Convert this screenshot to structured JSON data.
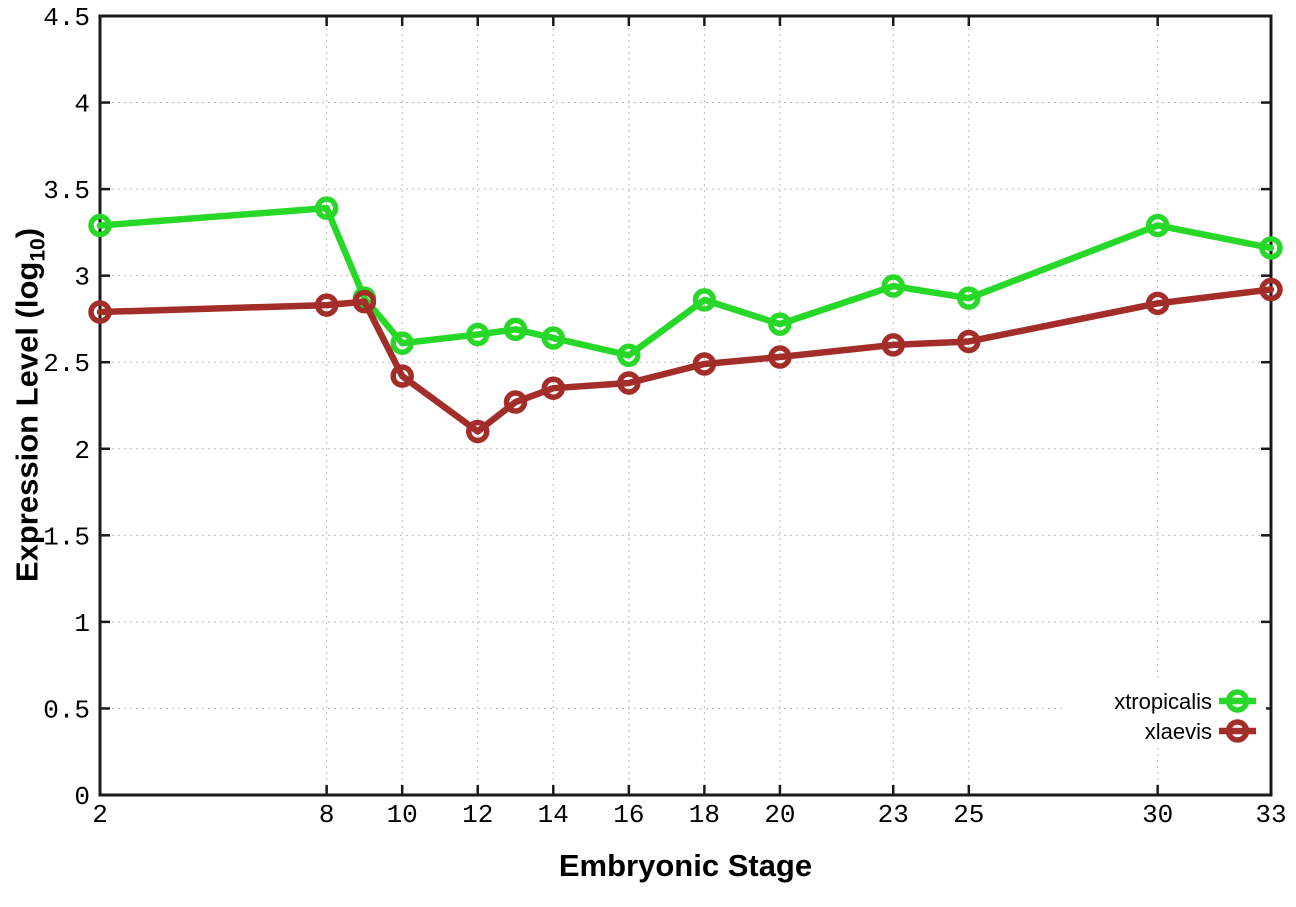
{
  "chart_data": {
    "type": "line",
    "title": "",
    "xlabel": "Embryonic Stage",
    "ylabel": "Expression Level (log10)",
    "ylabel_display": {
      "main": "Expression Level (log",
      "sub": "10",
      "close": ")"
    },
    "xlim": [
      2,
      33
    ],
    "ylim": [
      0,
      4.5
    ],
    "x_ticks": [
      2,
      8,
      10,
      12,
      14,
      16,
      18,
      20,
      23,
      25,
      30,
      33
    ],
    "y_ticks": [
      0,
      0.5,
      1,
      1.5,
      2,
      2.5,
      3,
      3.5,
      4,
      4.5
    ],
    "grid": true,
    "legend_position": "bottom-right",
    "marker": "open-circle",
    "x": [
      2,
      8,
      9,
      10,
      12,
      13,
      14,
      16,
      18,
      20,
      23,
      25,
      30,
      33
    ],
    "series": [
      {
        "name": "xtropicalis",
        "color": "#28d828",
        "values": [
          3.29,
          3.39,
          2.87,
          2.61,
          2.66,
          2.69,
          2.64,
          2.54,
          2.86,
          2.72,
          2.94,
          2.87,
          3.29,
          3.16
        ]
      },
      {
        "name": "xlaevis",
        "color": "#a32e29",
        "values": [
          2.79,
          2.83,
          2.85,
          2.42,
          2.1,
          2.27,
          2.35,
          2.38,
          2.49,
          2.53,
          2.6,
          2.62,
          2.84,
          2.92
        ]
      }
    ],
    "axis_color": "#1a1a1a",
    "grid_color": "#bbbbbb",
    "text_color": "#000000"
  }
}
